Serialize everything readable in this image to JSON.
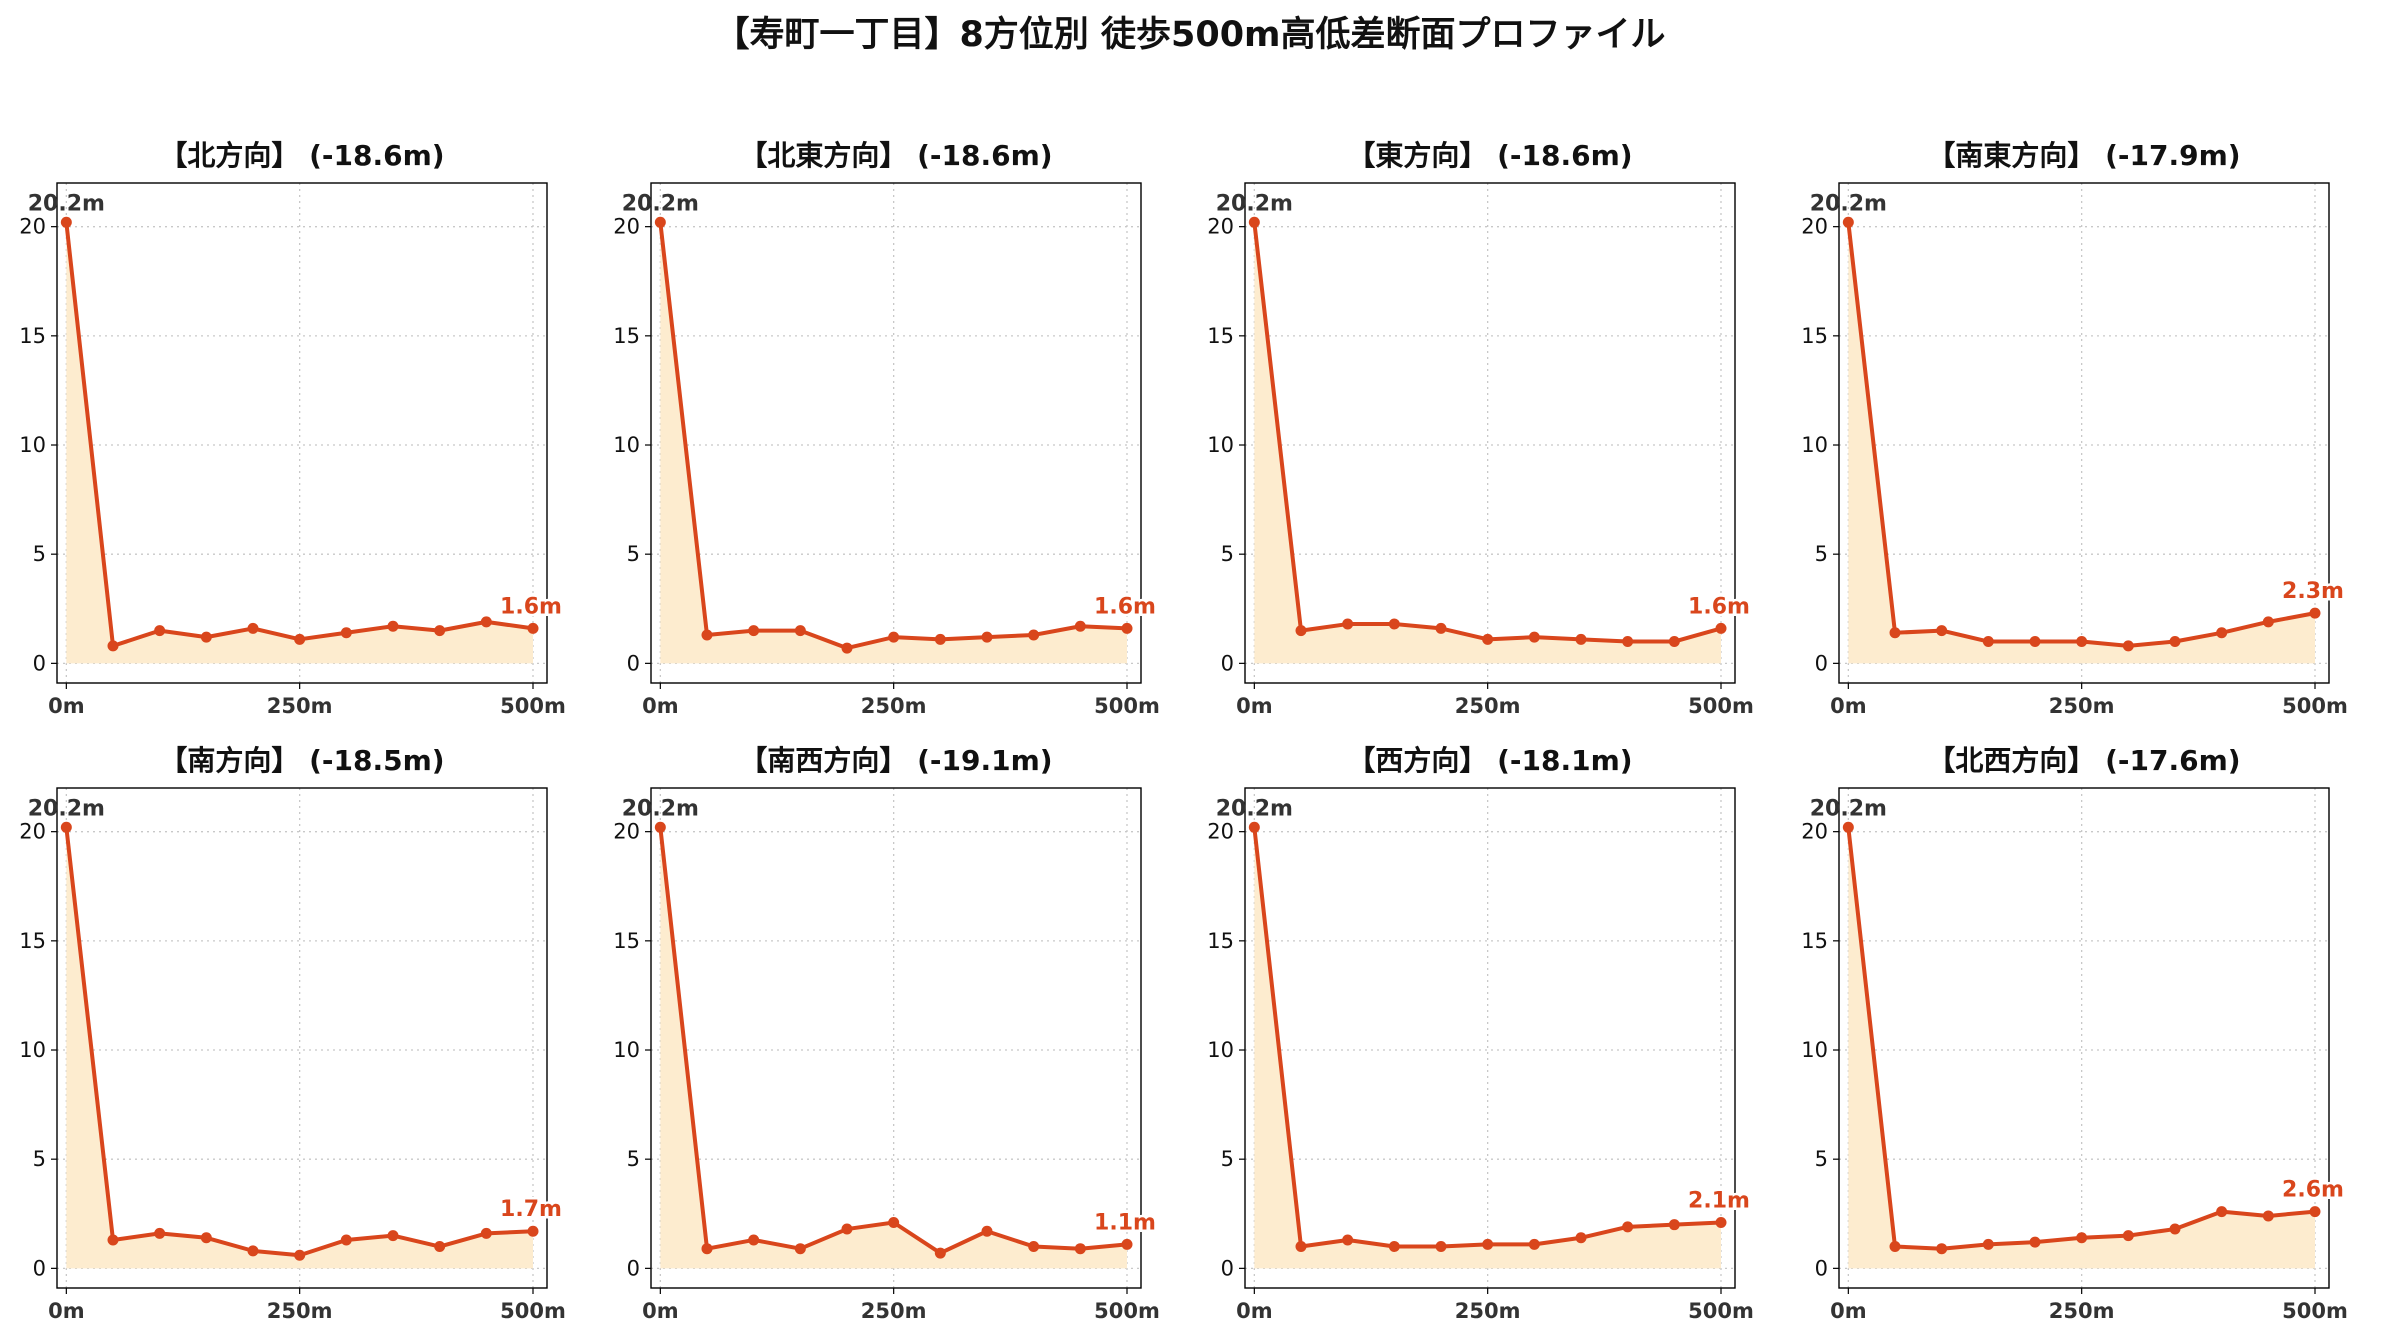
{
  "figure_title": "【寿町一丁目】8方位別 徒歩500m高低差断面プロファイル",
  "colors": {
    "line": "#d9461c",
    "fill": "#fdeccf",
    "end_label": "#d9461c",
    "start_label": "#333333",
    "grid": "#c8c8c8"
  },
  "chart_data": [
    {
      "type": "area",
      "title": "【北方向】 (-18.6m)",
      "x": [
        0,
        50,
        100,
        150,
        200,
        250,
        300,
        350,
        400,
        450,
        500
      ],
      "y": [
        20.2,
        0.8,
        1.5,
        1.2,
        1.6,
        1.1,
        1.4,
        1.7,
        1.5,
        1.9,
        1.6
      ],
      "xticks": [
        "0m",
        "250m",
        "500m"
      ],
      "yticks": [
        "0",
        "5",
        "10",
        "15",
        "20"
      ],
      "xlim": [
        -10,
        515
      ],
      "ylim": [
        -0.9,
        22.0
      ],
      "grid": true,
      "start_label": "20.2m",
      "end_label": "1.6m"
    },
    {
      "type": "area",
      "title": "【北東方向】 (-18.6m)",
      "x": [
        0,
        50,
        100,
        150,
        200,
        250,
        300,
        350,
        400,
        450,
        500
      ],
      "y": [
        20.2,
        1.3,
        1.5,
        1.5,
        0.7,
        1.2,
        1.1,
        1.2,
        1.3,
        1.7,
        1.6
      ],
      "xticks": [
        "0m",
        "250m",
        "500m"
      ],
      "yticks": [
        "0",
        "5",
        "10",
        "15",
        "20"
      ],
      "xlim": [
        -10,
        515
      ],
      "ylim": [
        -0.9,
        22.0
      ],
      "grid": true,
      "start_label": "20.2m",
      "end_label": "1.6m"
    },
    {
      "type": "area",
      "title": "【東方向】 (-18.6m)",
      "x": [
        0,
        50,
        100,
        150,
        200,
        250,
        300,
        350,
        400,
        450,
        500
      ],
      "y": [
        20.2,
        1.5,
        1.8,
        1.8,
        1.6,
        1.1,
        1.2,
        1.1,
        1.0,
        1.0,
        1.6
      ],
      "xticks": [
        "0m",
        "250m",
        "500m"
      ],
      "yticks": [
        "0",
        "5",
        "10",
        "15",
        "20"
      ],
      "xlim": [
        -10,
        515
      ],
      "ylim": [
        -0.9,
        22.0
      ],
      "grid": true,
      "start_label": "20.2m",
      "end_label": "1.6m"
    },
    {
      "type": "area",
      "title": "【南東方向】 (-17.9m)",
      "x": [
        0,
        50,
        100,
        150,
        200,
        250,
        300,
        350,
        400,
        450,
        500
      ],
      "y": [
        20.2,
        1.4,
        1.5,
        1.0,
        1.0,
        1.0,
        0.8,
        1.0,
        1.4,
        1.9,
        2.3
      ],
      "xticks": [
        "0m",
        "250m",
        "500m"
      ],
      "yticks": [
        "0",
        "5",
        "10",
        "15",
        "20"
      ],
      "xlim": [
        -10,
        515
      ],
      "ylim": [
        -0.9,
        22.0
      ],
      "grid": true,
      "start_label": "20.2m",
      "end_label": "2.3m"
    },
    {
      "type": "area",
      "title": "【南方向】 (-18.5m)",
      "x": [
        0,
        50,
        100,
        150,
        200,
        250,
        300,
        350,
        400,
        450,
        500
      ],
      "y": [
        20.2,
        1.3,
        1.6,
        1.4,
        0.8,
        0.6,
        1.3,
        1.5,
        1.0,
        1.6,
        1.7
      ],
      "xticks": [
        "0m",
        "250m",
        "500m"
      ],
      "yticks": [
        "0",
        "5",
        "10",
        "15",
        "20"
      ],
      "xlim": [
        -10,
        515
      ],
      "ylim": [
        -0.9,
        22.0
      ],
      "grid": true,
      "start_label": "20.2m",
      "end_label": "1.7m"
    },
    {
      "type": "area",
      "title": "【南西方向】 (-19.1m)",
      "x": [
        0,
        50,
        100,
        150,
        200,
        250,
        300,
        350,
        400,
        450,
        500
      ],
      "y": [
        20.2,
        0.9,
        1.3,
        0.9,
        1.8,
        2.1,
        0.7,
        1.7,
        1.0,
        0.9,
        1.1
      ],
      "xticks": [
        "0m",
        "250m",
        "500m"
      ],
      "yticks": [
        "0",
        "5",
        "10",
        "15",
        "20"
      ],
      "xlim": [
        -10,
        515
      ],
      "ylim": [
        -0.9,
        22.0
      ],
      "grid": true,
      "start_label": "20.2m",
      "end_label": "1.1m"
    },
    {
      "type": "area",
      "title": "【西方向】 (-18.1m)",
      "x": [
        0,
        50,
        100,
        150,
        200,
        250,
        300,
        350,
        400,
        450,
        500
      ],
      "y": [
        20.2,
        1.0,
        1.3,
        1.0,
        1.0,
        1.1,
        1.1,
        1.4,
        1.9,
        2.0,
        2.1
      ],
      "xticks": [
        "0m",
        "250m",
        "500m"
      ],
      "yticks": [
        "0",
        "5",
        "10",
        "15",
        "20"
      ],
      "xlim": [
        -10,
        515
      ],
      "ylim": [
        -0.9,
        22.0
      ],
      "grid": true,
      "start_label": "20.2m",
      "end_label": "2.1m"
    },
    {
      "type": "area",
      "title": "【北西方向】 (-17.6m)",
      "x": [
        0,
        50,
        100,
        150,
        200,
        250,
        300,
        350,
        400,
        450,
        500
      ],
      "y": [
        20.2,
        1.0,
        0.9,
        1.1,
        1.2,
        1.4,
        1.5,
        1.8,
        2.6,
        2.4,
        2.6
      ],
      "xticks": [
        "0m",
        "250m",
        "500m"
      ],
      "yticks": [
        "0",
        "5",
        "10",
        "15",
        "20"
      ],
      "xlim": [
        -10,
        515
      ],
      "ylim": [
        -0.9,
        22.0
      ],
      "grid": true,
      "start_label": "20.2m",
      "end_label": "2.6m"
    }
  ]
}
